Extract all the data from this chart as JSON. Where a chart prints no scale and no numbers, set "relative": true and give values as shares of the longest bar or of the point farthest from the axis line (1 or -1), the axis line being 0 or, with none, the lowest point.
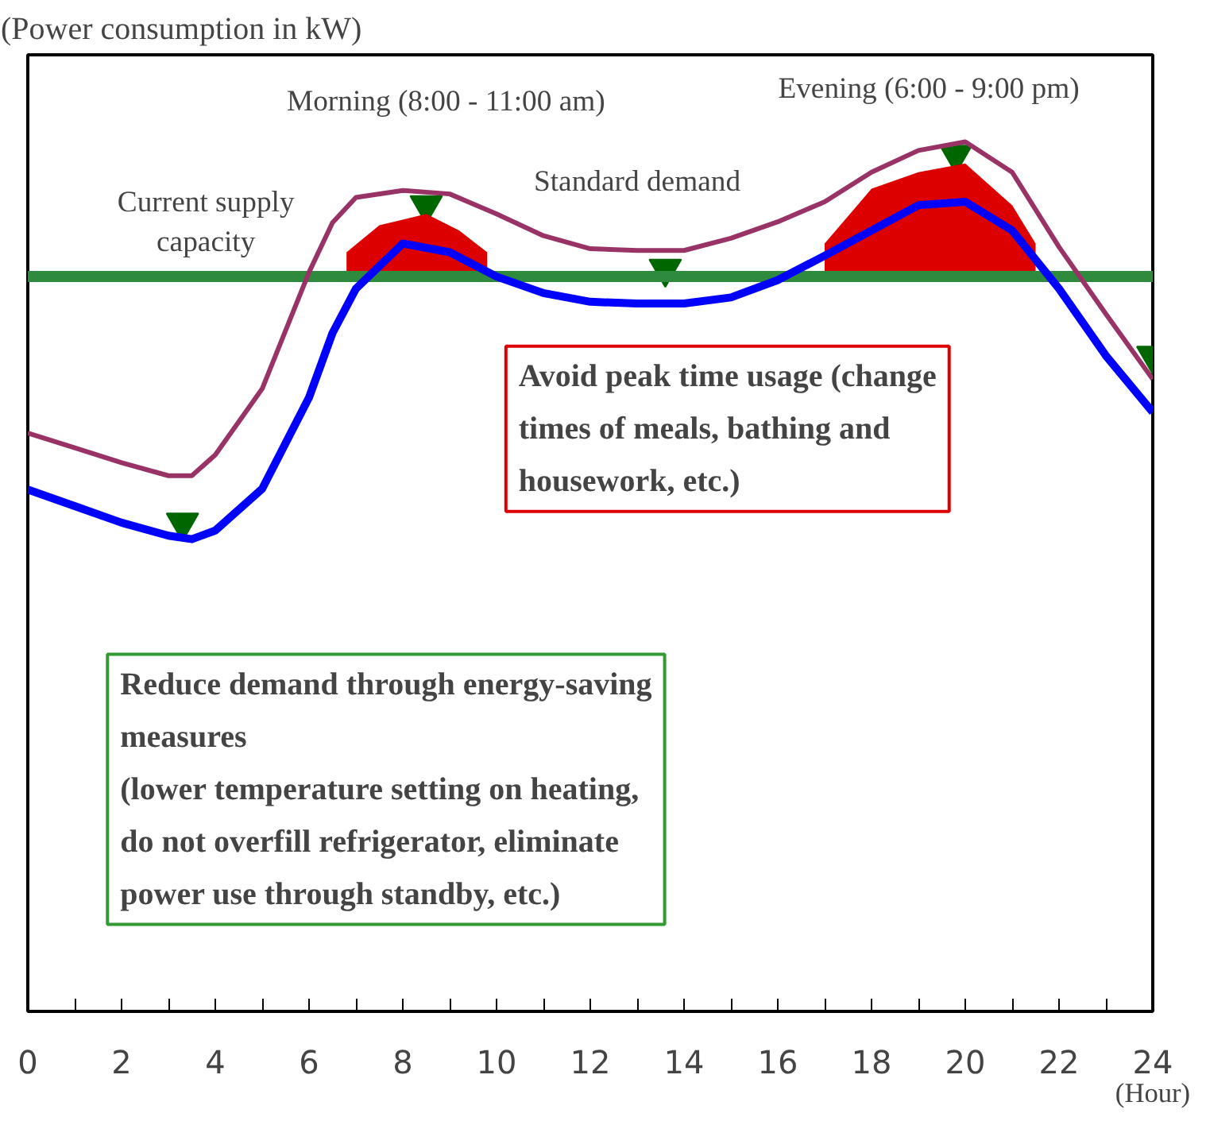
{
  "chart_data": {
    "type": "line",
    "relative": true,
    "ylabel": "(Power consumption in kW)",
    "xlabel": "(Hour)",
    "x": [
      0,
      1,
      2,
      3,
      3.5,
      4,
      5,
      6,
      6.5,
      7,
      8,
      9,
      10,
      11,
      12,
      13,
      14,
      15,
      16,
      17,
      18,
      19,
      20,
      21,
      22,
      23,
      24
    ],
    "xlim": [
      0,
      24
    ],
    "xticks": [
      0,
      2,
      4,
      6,
      8,
      10,
      12,
      14,
      16,
      18,
      20,
      22,
      24
    ],
    "series": [
      {
        "name": "Standard demand",
        "color": "#993366",
        "values": [
          0.665,
          0.648,
          0.631,
          0.616,
          0.616,
          0.64,
          0.716,
          0.85,
          0.907,
          0.936,
          0.944,
          0.94,
          0.917,
          0.892,
          0.877,
          0.875,
          0.875,
          0.889,
          0.908,
          0.931,
          0.965,
          0.99,
          1.0,
          0.965,
          0.879,
          0.802,
          0.727
        ]
      },
      {
        "color": "#0000ff",
        "values": [
          0.6,
          0.581,
          0.562,
          0.547,
          0.543,
          0.553,
          0.601,
          0.706,
          0.78,
          0.831,
          0.883,
          0.873,
          0.845,
          0.826,
          0.816,
          0.814,
          0.814,
          0.821,
          0.841,
          0.869,
          0.898,
          0.927,
          0.931,
          0.898,
          0.831,
          0.754,
          0.689
        ]
      },
      {
        "type": "area",
        "color": "#dd0000",
        "x": [
          6.8,
          7.5,
          8.5,
          9.2,
          9.8
        ],
        "values": [
          0.873,
          0.904,
          0.917,
          0.898,
          0.873
        ]
      },
      {
        "type": "area",
        "color": "#dd0000",
        "x": [
          17,
          18,
          19,
          20,
          21,
          21.5
        ],
        "values": [
          0.883,
          0.946,
          0.965,
          0.975,
          0.927,
          0.883
        ]
      },
      {
        "type": "scatter",
        "color": "#006600",
        "marker": "triangle",
        "x": [
          3.3,
          8.5,
          13.6,
          19.8,
          24
        ],
        "values": [
          0.562,
          0.927,
          0.854,
          0.985,
          0.754
        ]
      }
    ],
    "ref_lines": [
      {
        "axis": "y",
        "value": 0.845,
        "label": "Current supply\ncapacity",
        "color": "#2e8b3e"
      }
    ],
    "annotations": [
      "Morning  (8:00 - 11:00 am)",
      "Evening  (6:00 - 9:00 pm)",
      "Avoid peak time usage (change\ntimes of meals, bathing and\nhousework, etc.)",
      "Reduce demand through energy-saving\nmeasures\n(lower temperature setting on heating,\ndo not overfill refrigerator, eliminate\npower use through standby, etc.)"
    ],
    "grid": false
  }
}
